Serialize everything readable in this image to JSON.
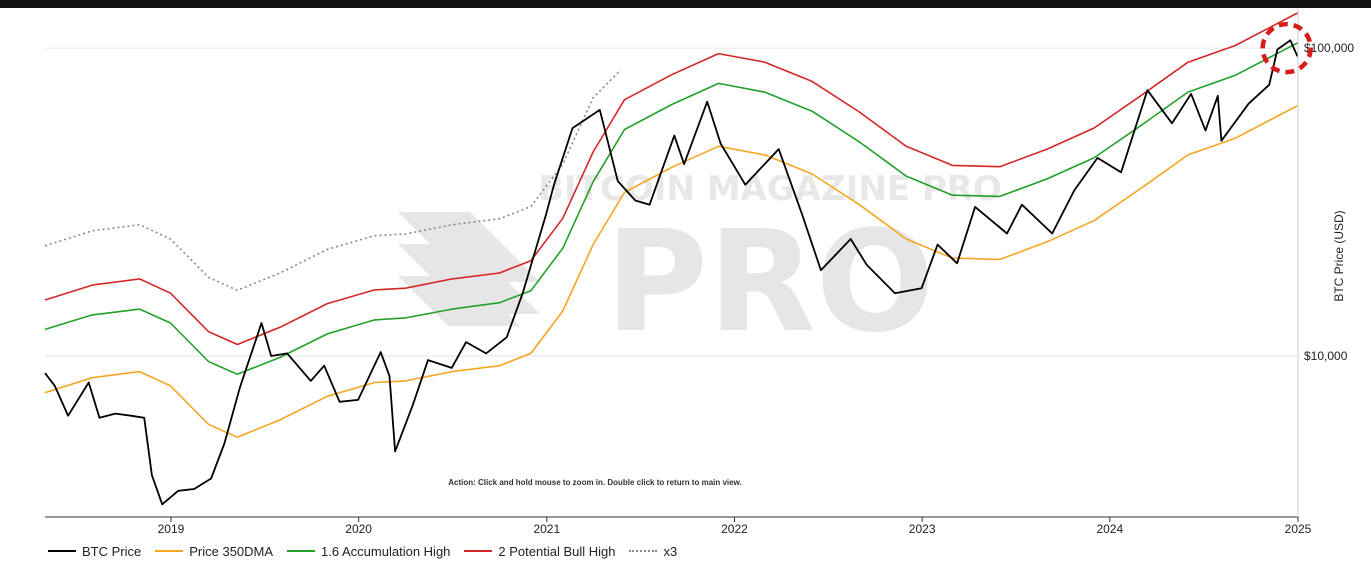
{
  "chart_data": {
    "type": "line",
    "ylabel": "BTC Price (USD)",
    "yscale": "log",
    "ylim": [
      3000,
      135000
    ],
    "xlim": [
      "2018-05-01",
      "2025-01-01"
    ],
    "x_tick_labels": [
      "2019",
      "2020",
      "2021",
      "2022",
      "2023",
      "2024",
      "2025"
    ],
    "y_tick_labels": [
      "$10,000",
      "$100,000"
    ],
    "y_ticks": [
      10000,
      100000
    ],
    "annotation": "Action: Click and hold mouse to zoom in.  Double click to return to main view.",
    "watermark": "BITCOIN MAGAZINE PRO",
    "grid": true,
    "legend_position": "bottom",
    "series": [
      {
        "name": "BTC Price",
        "color": "#000000",
        "style": "solid",
        "points": [
          [
            "2018-05-01",
            8800
          ],
          [
            "2018-05-20",
            8000
          ],
          [
            "2018-06-15",
            6400
          ],
          [
            "2018-07-25",
            8200
          ],
          [
            "2018-08-15",
            6300
          ],
          [
            "2018-09-15",
            6500
          ],
          [
            "2018-10-15",
            6400
          ],
          [
            "2018-11-10",
            6300
          ],
          [
            "2018-11-25",
            4100
          ],
          [
            "2018-12-15",
            3300
          ],
          [
            "2019-01-15",
            3650
          ],
          [
            "2019-02-15",
            3700
          ],
          [
            "2019-03-20",
            4000
          ],
          [
            "2019-04-15",
            5200
          ],
          [
            "2019-05-15",
            7900
          ],
          [
            "2019-06-26",
            12800
          ],
          [
            "2019-07-15",
            10000
          ],
          [
            "2019-08-15",
            10200
          ],
          [
            "2019-09-30",
            8300
          ],
          [
            "2019-10-26",
            9300
          ],
          [
            "2019-11-25",
            7100
          ],
          [
            "2019-12-31",
            7200
          ],
          [
            "2020-02-13",
            10300
          ],
          [
            "2020-03-01",
            8600
          ],
          [
            "2020-03-12",
            4900
          ],
          [
            "2020-04-15",
            6900
          ],
          [
            "2020-05-15",
            9700
          ],
          [
            "2020-06-30",
            9150
          ],
          [
            "2020-07-28",
            11100
          ],
          [
            "2020-09-05",
            10200
          ],
          [
            "2020-10-15",
            11500
          ],
          [
            "2020-11-15",
            16000
          ],
          [
            "2020-12-31",
            29000
          ],
          [
            "2021-01-15",
            36000
          ],
          [
            "2021-02-20",
            55000
          ],
          [
            "2021-04-14",
            63000
          ],
          [
            "2021-05-19",
            37000
          ],
          [
            "2021-06-22",
            32000
          ],
          [
            "2021-07-20",
            31000
          ],
          [
            "2021-09-06",
            52000
          ],
          [
            "2021-09-25",
            42000
          ],
          [
            "2021-11-09",
            67000
          ],
          [
            "2021-12-05",
            49000
          ],
          [
            "2022-01-22",
            36000
          ],
          [
            "2022-03-28",
            47000
          ],
          [
            "2022-05-12",
            29000
          ],
          [
            "2022-06-18",
            19000
          ],
          [
            "2022-08-15",
            24000
          ],
          [
            "2022-09-15",
            19800
          ],
          [
            "2022-11-09",
            16000
          ],
          [
            "2022-12-31",
            16600
          ],
          [
            "2023-01-31",
            23000
          ],
          [
            "2023-03-10",
            20000
          ],
          [
            "2023-04-14",
            30500
          ],
          [
            "2023-06-15",
            25000
          ],
          [
            "2023-07-14",
            31000
          ],
          [
            "2023-09-11",
            25000
          ],
          [
            "2023-10-24",
            34500
          ],
          [
            "2023-12-08",
            44000
          ],
          [
            "2024-01-23",
            39500
          ],
          [
            "2024-03-14",
            73000
          ],
          [
            "2024-05-01",
            57000
          ],
          [
            "2024-06-07",
            71000
          ],
          [
            "2024-07-05",
            54000
          ],
          [
            "2024-07-29",
            70000
          ],
          [
            "2024-08-05",
            50000
          ],
          [
            "2024-09-27",
            66000
          ],
          [
            "2024-11-06",
            76000
          ],
          [
            "2024-11-22",
            99000
          ],
          [
            "2024-12-17",
            106000
          ],
          [
            "2024-12-31",
            94000
          ]
        ]
      },
      {
        "name": "Price 350DMA",
        "color": "#f5a623",
        "style": "solid",
        "points": [
          [
            "2018-05-01",
            7600
          ],
          [
            "2018-08-01",
            8500
          ],
          [
            "2018-11-01",
            8900
          ],
          [
            "2018-12-31",
            8000
          ],
          [
            "2019-03-15",
            6000
          ],
          [
            "2019-05-10",
            5450
          ],
          [
            "2019-08-01",
            6200
          ],
          [
            "2019-11-01",
            7400
          ],
          [
            "2020-02-01",
            8200
          ],
          [
            "2020-04-01",
            8300
          ],
          [
            "2020-07-01",
            8900
          ],
          [
            "2020-10-01",
            9300
          ],
          [
            "2020-12-01",
            10200
          ],
          [
            "2021-02-01",
            14000
          ],
          [
            "2021-04-01",
            23000
          ],
          [
            "2021-06-01",
            34000
          ],
          [
            "2021-09-01",
            41000
          ],
          [
            "2021-12-01",
            48000
          ],
          [
            "2022-03-01",
            45000
          ],
          [
            "2022-06-01",
            39000
          ],
          [
            "2022-09-01",
            31000
          ],
          [
            "2022-12-01",
            24000
          ],
          [
            "2023-03-01",
            20800
          ],
          [
            "2023-06-01",
            20600
          ],
          [
            "2023-09-01",
            23500
          ],
          [
            "2023-12-01",
            27500
          ],
          [
            "2024-03-01",
            35000
          ],
          [
            "2024-06-01",
            45000
          ],
          [
            "2024-09-01",
            51000
          ],
          [
            "2024-12-31",
            65000
          ]
        ]
      },
      {
        "name": "1.6 Accumulation High",
        "color": "#22a02a",
        "style": "solid",
        "points": [
          [
            "2018-05-01",
            12200
          ],
          [
            "2018-08-01",
            13600
          ],
          [
            "2018-11-01",
            14200
          ],
          [
            "2018-12-31",
            12800
          ],
          [
            "2019-03-15",
            9600
          ],
          [
            "2019-05-10",
            8720
          ],
          [
            "2019-08-01",
            9900
          ],
          [
            "2019-11-01",
            11800
          ],
          [
            "2020-02-01",
            13100
          ],
          [
            "2020-04-01",
            13300
          ],
          [
            "2020-07-01",
            14200
          ],
          [
            "2020-10-01",
            14900
          ],
          [
            "2020-12-01",
            16300
          ],
          [
            "2021-02-01",
            22400
          ],
          [
            "2021-04-01",
            36800
          ],
          [
            "2021-06-01",
            54400
          ],
          [
            "2021-09-01",
            65600
          ],
          [
            "2021-12-01",
            76800
          ],
          [
            "2022-03-01",
            72000
          ],
          [
            "2022-06-01",
            62400
          ],
          [
            "2022-09-01",
            49600
          ],
          [
            "2022-12-01",
            38400
          ],
          [
            "2023-03-01",
            33300
          ],
          [
            "2023-06-01",
            33000
          ],
          [
            "2023-09-01",
            37600
          ],
          [
            "2023-12-01",
            44000
          ],
          [
            "2024-03-01",
            56000
          ],
          [
            "2024-06-01",
            72000
          ],
          [
            "2024-09-01",
            81600
          ],
          [
            "2024-12-31",
            104000
          ]
        ]
      },
      {
        "name": "2 Potential Bull High",
        "color": "#d62728",
        "style": "solid",
        "points": [
          [
            "2018-05-01",
            15200
          ],
          [
            "2018-08-01",
            17000
          ],
          [
            "2018-11-01",
            17800
          ],
          [
            "2018-12-31",
            16000
          ],
          [
            "2019-03-15",
            12000
          ],
          [
            "2019-05-10",
            10900
          ],
          [
            "2019-08-01",
            12400
          ],
          [
            "2019-11-01",
            14800
          ],
          [
            "2020-02-01",
            16400
          ],
          [
            "2020-04-01",
            16600
          ],
          [
            "2020-07-01",
            17800
          ],
          [
            "2020-10-01",
            18600
          ],
          [
            "2020-12-01",
            20400
          ],
          [
            "2021-02-01",
            28000
          ],
          [
            "2021-04-01",
            46000
          ],
          [
            "2021-06-01",
            68000
          ],
          [
            "2021-09-01",
            82000
          ],
          [
            "2021-12-01",
            96000
          ],
          [
            "2022-03-01",
            90000
          ],
          [
            "2022-06-01",
            78000
          ],
          [
            "2022-09-01",
            62000
          ],
          [
            "2022-12-01",
            48000
          ],
          [
            "2023-03-01",
            41600
          ],
          [
            "2023-06-01",
            41200
          ],
          [
            "2023-09-01",
            47000
          ],
          [
            "2023-12-01",
            55000
          ],
          [
            "2024-03-01",
            70000
          ],
          [
            "2024-06-01",
            90000
          ],
          [
            "2024-09-01",
            102000
          ],
          [
            "2024-12-31",
            130000
          ]
        ]
      },
      {
        "name": "x3",
        "color": "#888888",
        "style": "dotted",
        "points": [
          [
            "2018-05-01",
            22800
          ],
          [
            "2018-08-01",
            25500
          ],
          [
            "2018-11-01",
            26700
          ],
          [
            "2018-12-31",
            24000
          ],
          [
            "2019-03-15",
            18000
          ],
          [
            "2019-05-10",
            16350
          ],
          [
            "2019-08-01",
            18600
          ],
          [
            "2019-11-01",
            22200
          ],
          [
            "2020-02-01",
            24600
          ],
          [
            "2020-04-01",
            24900
          ],
          [
            "2020-07-01",
            26700
          ],
          [
            "2020-10-01",
            27900
          ],
          [
            "2020-12-01",
            30600
          ],
          [
            "2021-02-01",
            42000
          ],
          [
            "2021-04-01",
            69000
          ],
          [
            "2021-05-25",
            85000
          ]
        ]
      }
    ],
    "highlight_marker": {
      "date": "2024-12-10",
      "value": 100000,
      "color": "#d81b1b",
      "style": "dashed-circle"
    }
  }
}
